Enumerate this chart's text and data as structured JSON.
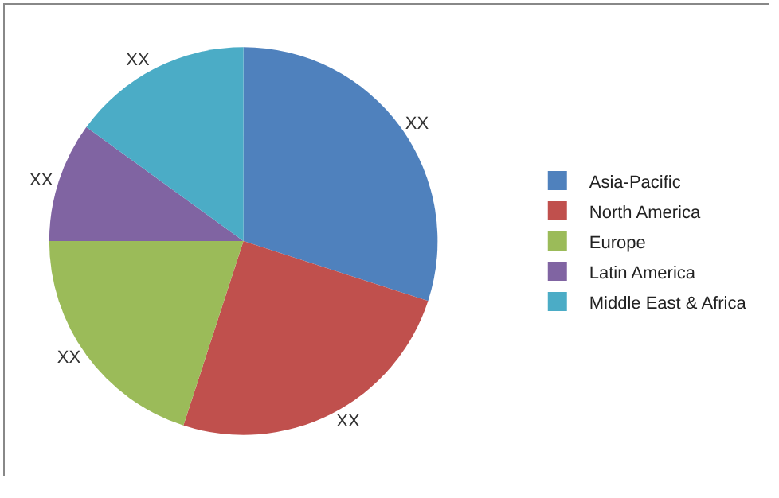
{
  "chart_data": {
    "type": "pie",
    "categories": [
      "Asia-Pacific",
      "North America",
      "Europe",
      "Latin America",
      "Middle East & Africa"
    ],
    "values": [
      30,
      25,
      20,
      10,
      15
    ],
    "value_labels": [
      "XX",
      "XX",
      "XX",
      "XX",
      "XX"
    ],
    "colors": [
      "#4f81bd",
      "#c0504d",
      "#9bbb59",
      "#8064a2",
      "#4bacc6"
    ],
    "legend": "right"
  }
}
